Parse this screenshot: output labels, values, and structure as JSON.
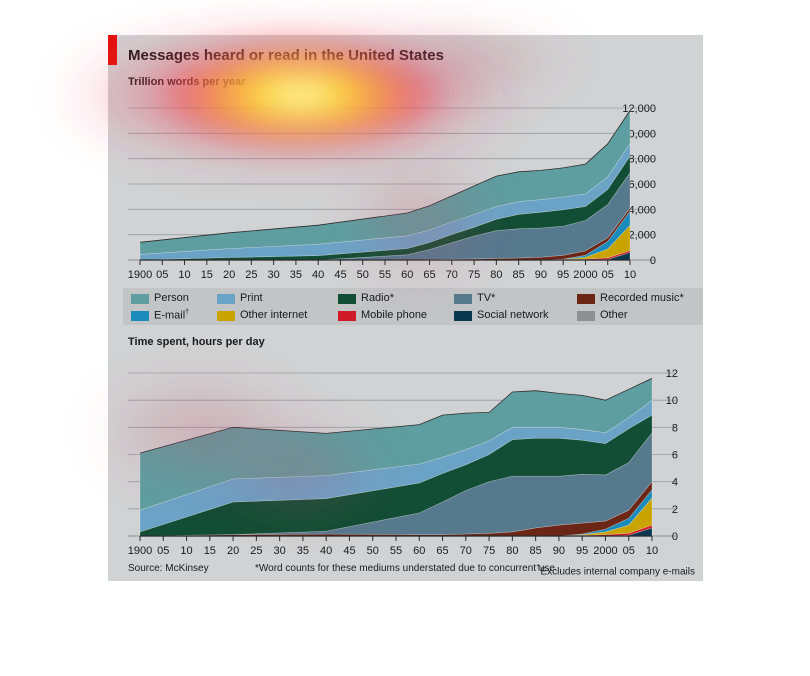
{
  "title": "Messages heard or read in the United States",
  "source": "Source: McKinsey",
  "footnote_words": "*Word counts for these mediums understated due to concurrent use",
  "footnote_email_mark": "†",
  "footnote_email": "Excludes internal company e-mails",
  "colors": {
    "background": "#d1d2d3",
    "legend_bg": "#c3c4c6",
    "accent": "#e3120b",
    "grid": "#9a9ca0"
  },
  "legend": [
    {
      "key": "person",
      "label": "Person",
      "color": "#5e9ea0",
      "sup": ""
    },
    {
      "key": "print",
      "label": "Print",
      "color": "#6ba3c6",
      "sup": ""
    },
    {
      "key": "radio",
      "label": "Radio*",
      "color": "#124d35",
      "sup": ""
    },
    {
      "key": "tv",
      "label": "TV*",
      "color": "#56798e",
      "sup": ""
    },
    {
      "key": "recorded",
      "label": "Recorded music*",
      "color": "#6b2616",
      "sup": ""
    },
    {
      "key": "email",
      "label": "E-mail",
      "color": "#1a8bbb",
      "sup": "†"
    },
    {
      "key": "otherinternet",
      "label": "Other internet",
      "color": "#c9a400",
      "sup": ""
    },
    {
      "key": "mobile",
      "label": "Mobile phone",
      "color": "#d11a27",
      "sup": ""
    },
    {
      "key": "social",
      "label": "Social network",
      "color": "#08384f",
      "sup": ""
    },
    {
      "key": "other",
      "label": "Other",
      "color": "#8e8f91",
      "sup": ""
    }
  ],
  "chart_data": [
    {
      "type": "area",
      "stacked": true,
      "title": "Messages heard or read in the United States",
      "subtitle": "Trillion words per year",
      "x": [
        1900,
        1920,
        1940,
        1960,
        1965,
        1970,
        1975,
        1980,
        1985,
        1990,
        1995,
        2000,
        2005,
        2010
      ],
      "x_tick_labels": [
        "1900",
        "05",
        "10",
        "15",
        "20",
        "25",
        "30",
        "35",
        "40",
        "45",
        "50",
        "55",
        "60",
        "65",
        "70",
        "75",
        "80",
        "85",
        "90",
        "95",
        "2000",
        "05",
        "10"
      ],
      "ylim": [
        0,
        12000
      ],
      "y_ticks": [
        0,
        2000,
        4000,
        6000,
        8000,
        10000,
        12000
      ],
      "y_tick_labels": [
        "0",
        "2,000",
        "4,000",
        "6,000",
        "8,000",
        "10,000",
        "12,000"
      ],
      "grid": true,
      "series": [
        {
          "name": "Social network",
          "values": [
            0,
            0,
            0,
            0,
            0,
            0,
            0,
            0,
            0,
            0,
            0,
            0,
            50,
            600
          ]
        },
        {
          "name": "Mobile phone",
          "values": [
            0,
            0,
            0,
            0,
            0,
            0,
            0,
            0,
            0,
            0,
            20,
            70,
            120,
            150
          ]
        },
        {
          "name": "Other internet",
          "values": [
            0,
            0,
            0,
            0,
            0,
            0,
            0,
            0,
            0,
            0,
            30,
            150,
            700,
            2000
          ]
        },
        {
          "name": "E-mail",
          "values": [
            0,
            0,
            0,
            0,
            0,
            0,
            0,
            0,
            0,
            0,
            20,
            150,
            600,
            1100
          ]
        },
        {
          "name": "Recorded music*",
          "values": [
            0,
            0,
            0,
            10,
            30,
            60,
            90,
            120,
            160,
            220,
            300,
            350,
            300,
            250
          ]
        },
        {
          "name": "TV*",
          "values": [
            0,
            0,
            0,
            400,
            800,
            1300,
            1800,
            2200,
            2300,
            2300,
            2300,
            2400,
            2600,
            2800
          ]
        },
        {
          "name": "Radio*",
          "values": [
            0,
            200,
            350,
            500,
            550,
            650,
            700,
            900,
            1150,
            1250,
            1300,
            1100,
            1200,
            1300
          ]
        },
        {
          "name": "Print",
          "values": [
            450,
            700,
            900,
            1000,
            1000,
            1000,
            1000,
            1000,
            1000,
            1000,
            1000,
            1000,
            1000,
            1000
          ]
        },
        {
          "name": "Person",
          "values": [
            950,
            1250,
            1500,
            1800,
            1900,
            2050,
            2250,
            2400,
            2350,
            2300,
            2300,
            2350,
            2600,
            2600
          ]
        }
      ]
    },
    {
      "type": "area",
      "stacked": true,
      "subtitle": "Time spent, hours per day",
      "x": [
        1900,
        1920,
        1940,
        1960,
        1965,
        1970,
        1975,
        1980,
        1985,
        1990,
        1995,
        2000,
        2005,
        2010
      ],
      "x_tick_labels": [
        "1900",
        "05",
        "10",
        "15",
        "20",
        "25",
        "30",
        "35",
        "40",
        "45",
        "50",
        "55",
        "60",
        "65",
        "70",
        "75",
        "80",
        "85",
        "90",
        "95",
        "2000",
        "05",
        "10"
      ],
      "ylim": [
        0,
        12
      ],
      "y_ticks": [
        0,
        2,
        4,
        6,
        8,
        10,
        12
      ],
      "y_tick_labels": [
        "0",
        "2",
        "4",
        "6",
        "8",
        "10",
        "12"
      ],
      "grid": true,
      "series": [
        {
          "name": "Social network",
          "values": [
            0,
            0,
            0,
            0,
            0,
            0,
            0,
            0,
            0,
            0,
            0,
            0,
            0.05,
            0.6
          ]
        },
        {
          "name": "Mobile phone",
          "values": [
            0,
            0,
            0,
            0,
            0,
            0,
            0,
            0,
            0,
            0,
            0.05,
            0.1,
            0.15,
            0.2
          ]
        },
        {
          "name": "Other internet",
          "values": [
            0,
            0,
            0,
            0,
            0,
            0,
            0,
            0,
            0,
            0,
            0.05,
            0.2,
            0.6,
            2.0
          ]
        },
        {
          "name": "E-mail",
          "values": [
            0,
            0,
            0,
            0,
            0,
            0,
            0,
            0,
            0,
            0,
            0.05,
            0.2,
            0.5,
            0.6
          ]
        },
        {
          "name": "Recorded music*",
          "values": [
            0,
            0.1,
            0.15,
            0.1,
            0.1,
            0.15,
            0.2,
            0.3,
            0.6,
            0.8,
            0.8,
            0.6,
            0.6,
            0.6
          ]
        },
        {
          "name": "TV*",
          "values": [
            0,
            0,
            0.2,
            1.6,
            2.4,
            3.2,
            3.8,
            4.1,
            3.8,
            3.6,
            3.6,
            3.4,
            3.5,
            3.6
          ]
        },
        {
          "name": "Radio*",
          "values": [
            0.3,
            2.4,
            2.4,
            2.2,
            2.1,
            1.9,
            2.0,
            2.7,
            2.8,
            2.8,
            2.5,
            2.3,
            2.5,
            1.3
          ]
        },
        {
          "name": "Print",
          "values": [
            1.6,
            1.7,
            1.7,
            1.4,
            1.2,
            1.1,
            1.0,
            0.9,
            0.8,
            0.8,
            0.8,
            0.8,
            0.8,
            1.1
          ]
        },
        {
          "name": "Person",
          "values": [
            4.2,
            3.8,
            3.1,
            2.9,
            3.1,
            2.7,
            2.1,
            2.6,
            2.7,
            2.5,
            2.5,
            2.4,
            2.1,
            1.6
          ]
        }
      ]
    }
  ]
}
